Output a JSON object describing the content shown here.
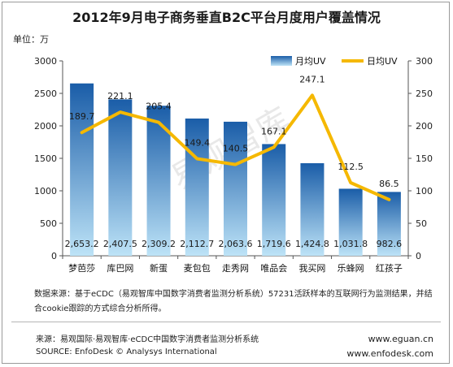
{
  "title": "2012年9月电子商务垂直B2C平台月度用户覆盖情况",
  "unit_label": "单位：万",
  "chart_data": {
    "type": "bar",
    "categories": [
      "梦芭莎",
      "库巴网",
      "新蛋",
      "麦包包",
      "走秀网",
      "唯品会",
      "我买网",
      "乐蜂网",
      "红孩子"
    ],
    "series": [
      {
        "name": "月均UV",
        "type": "bar",
        "axis": "left",
        "values": [
          2653.2,
          2407.5,
          2309.2,
          2112.7,
          2063.6,
          1719.6,
          1424.8,
          1031.8,
          982.6
        ],
        "labels": [
          "2,653.2",
          "2,407.5",
          "2,309.2",
          "2,112.7",
          "2,063.6",
          "1,719.6",
          "1,424.8",
          "1,031.8",
          "982.6"
        ]
      },
      {
        "name": "日均UV",
        "type": "line",
        "axis": "right",
        "values": [
          189.7,
          221.1,
          205.4,
          149.4,
          140.5,
          167.1,
          247.1,
          112.5,
          86.5
        ],
        "labels": [
          "189.7",
          "221.1",
          "205.4",
          "149.4",
          "140.5",
          "167.1",
          "247.1",
          "112.5",
          "86.5"
        ]
      }
    ],
    "ylim_left": [
      0,
      3000
    ],
    "yticks_left": [
      "0",
      "500",
      "1000",
      "1500",
      "2000",
      "2500",
      "3000"
    ],
    "ylim_right": [
      0,
      300
    ],
    "yticks_right": [
      "0",
      "50",
      "100",
      "150",
      "200",
      "250",
      "300"
    ],
    "legend": "top-right",
    "grid": false,
    "colors": {
      "bar_top": "#1a5da8",
      "bar_bottom": "#bde3f7",
      "line": "#f5b800",
      "watermark": "#d9d9d9"
    }
  },
  "watermark": "易观智库",
  "note": "数据来源：基于eCDC（易观智库中国数字消费者监测分析系统）57231活跃样本的互联网行为监测结果，并结合cookie跟踪的方式综合分析所得。",
  "source_cn": "来源：易观国际·易观智库·eCDC中国数字消费者监测分析系统",
  "source_en": "SOURCE: EnfoDesk © Analysys International",
  "website_1": "www.eguan.cn",
  "website_2": "www.enfodesk.com"
}
